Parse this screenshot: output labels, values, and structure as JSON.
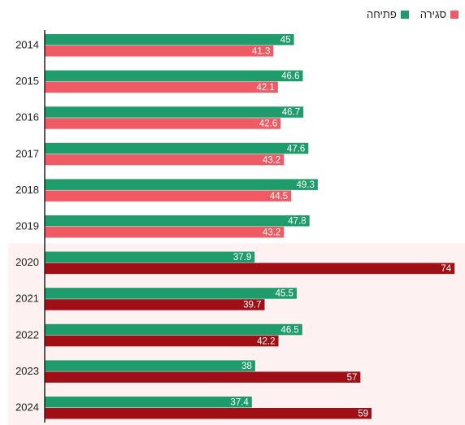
{
  "chart_data": {
    "type": "bar",
    "orientation": "horizontal",
    "categories": [
      "2014",
      "2015",
      "2016",
      "2017",
      "2018",
      "2019",
      "2020",
      "2021",
      "2022",
      "2023",
      "2024"
    ],
    "series": [
      {
        "name": "פתיחה",
        "values": [
          45,
          46.6,
          46.7,
          47.6,
          49.3,
          47.8,
          37.9,
          45.5,
          46.5,
          38,
          37.4
        ]
      },
      {
        "name": "סגירה",
        "values": [
          41.3,
          42.1,
          42.6,
          43.2,
          44.5,
          43.2,
          74,
          39.7,
          42.2,
          57,
          59
        ]
      }
    ],
    "value_labels": {
      "פתיחה": [
        "45",
        "46.6",
        "46.7",
        "47.6",
        "49.3",
        "47.8",
        "37.9",
        "45.5",
        "46.5",
        "38",
        "37.4"
      ],
      "סגירה": [
        "41.3",
        "42.1",
        "42.6",
        "43.2",
        "44.5",
        "43.2",
        "74",
        "39.7",
        "42.2",
        "57",
        "59"
      ]
    },
    "xlim": [
      0,
      75
    ],
    "highlight_categories": [
      "2020",
      "2021",
      "2022",
      "2023",
      "2024"
    ],
    "legend_position": "top-right",
    "grid": false
  },
  "colors": {
    "open": "#1e9c6b",
    "close": "#f05a64",
    "close_highlight": "#a10f16",
    "highlight_band": "#fdf1f1",
    "axis": "#222222",
    "label_text": "#ffffff"
  },
  "legend": {
    "open_label": "פתיחה",
    "close_label": "סגירה"
  }
}
